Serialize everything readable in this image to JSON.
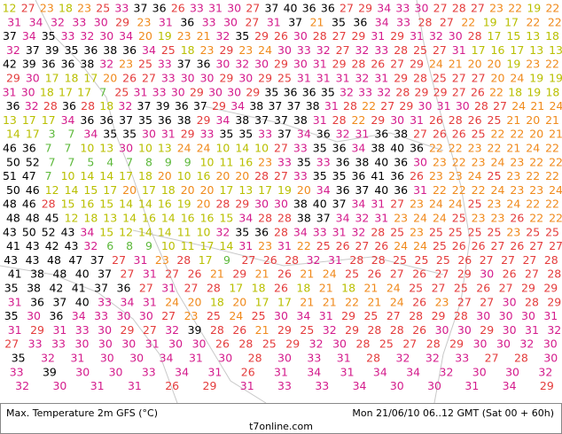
{
  "footer": {
    "title": "Max. Temperature 2m GFS (°C)",
    "time": "Mon 21/06/10 06..12 GMT (Sat 00 + 60h)",
    "source": "t7online.com"
  },
  "rows": [
    [
      12,
      27,
      23,
      18,
      23,
      25,
      33,
      37,
      36,
      26,
      33,
      31,
      30,
      27,
      37,
      40,
      36,
      36,
      27,
      29,
      34,
      33,
      30,
      27,
      28,
      27,
      23,
      22,
      19,
      22
    ],
    [
      31,
      34,
      32,
      33,
      30,
      29,
      23,
      31,
      36,
      33,
      30,
      27,
      31,
      37,
      21,
      35,
      36,
      34,
      33,
      28,
      27,
      22,
      19,
      17,
      22,
      22
    ],
    [
      37,
      34,
      35,
      33,
      32,
      30,
      34,
      20,
      19,
      23,
      21,
      32,
      35,
      29,
      26,
      30,
      28,
      27,
      29,
      31,
      29,
      31,
      32,
      30,
      28,
      17,
      15,
      13,
      18
    ],
    [
      32,
      37,
      39,
      35,
      36,
      38,
      36,
      34,
      25,
      18,
      23,
      29,
      23,
      24,
      30,
      33,
      32,
      27,
      32,
      33,
      28,
      25,
      27,
      31,
      17,
      16,
      17,
      13,
      13
    ],
    [
      42,
      39,
      36,
      36,
      38,
      32,
      23,
      25,
      33,
      37,
      36,
      30,
      32,
      30,
      29,
      30,
      31,
      29,
      28,
      26,
      27,
      29,
      24,
      21,
      20,
      20,
      19,
      23,
      22
    ],
    [
      29,
      30,
      17,
      18,
      17,
      20,
      26,
      27,
      33,
      30,
      30,
      29,
      30,
      29,
      25,
      31,
      31,
      31,
      32,
      31,
      29,
      28,
      25,
      27,
      27,
      20,
      24,
      19,
      19
    ],
    [
      31,
      30,
      18,
      17,
      17,
      7,
      25,
      31,
      33,
      30,
      29,
      30,
      30,
      29,
      35,
      36,
      36,
      35,
      32,
      33,
      32,
      28,
      29,
      29,
      27,
      26,
      22,
      18,
      19,
      18
    ],
    [
      36,
      32,
      28,
      36,
      28,
      18,
      32,
      37,
      39,
      36,
      37,
      29,
      34,
      38,
      37,
      37,
      38,
      31,
      28,
      22,
      27,
      29,
      30,
      31,
      30,
      28,
      27,
      24,
      21,
      24
    ],
    [
      13,
      17,
      17,
      34,
      36,
      36,
      37,
      35,
      36,
      38,
      29,
      34,
      38,
      37,
      37,
      38,
      31,
      28,
      22,
      29,
      30,
      31,
      26,
      28,
      26,
      25,
      21,
      20,
      21
    ],
    [
      14,
      17,
      3,
      7,
      34,
      35,
      35,
      30,
      31,
      29,
      33,
      35,
      35,
      33,
      37,
      34,
      36,
      32,
      31,
      36,
      38,
      27,
      26,
      26,
      25,
      22,
      22,
      20,
      21
    ],
    [
      46,
      36,
      7,
      7,
      10,
      13,
      30,
      10,
      13,
      24,
      24,
      10,
      14,
      10,
      27,
      33,
      35,
      36,
      34,
      38,
      40,
      36,
      22,
      22,
      23,
      22,
      21,
      24,
      22
    ],
    [
      50,
      52,
      7,
      7,
      5,
      4,
      7,
      8,
      9,
      9,
      10,
      11,
      16,
      23,
      33,
      35,
      33,
      36,
      38,
      40,
      36,
      30,
      23,
      22,
      23,
      24,
      23,
      22,
      22
    ],
    [
      51,
      47,
      7,
      10,
      14,
      14,
      17,
      18,
      20,
      10,
      16,
      20,
      20,
      28,
      27,
      33,
      35,
      35,
      36,
      41,
      36,
      26,
      23,
      23,
      24,
      25,
      23,
      22,
      22
    ],
    [
      50,
      46,
      12,
      14,
      15,
      17,
      20,
      17,
      18,
      20,
      20,
      17,
      13,
      17,
      19,
      20,
      34,
      36,
      37,
      40,
      36,
      31,
      22,
      22,
      22,
      24,
      23,
      23,
      24
    ],
    [
      48,
      46,
      28,
      15,
      16,
      15,
      14,
      14,
      16,
      19,
      20,
      28,
      29,
      30,
      30,
      38,
      40,
      37,
      34,
      31,
      27,
      23,
      24,
      24,
      25,
      23,
      24,
      22,
      22
    ],
    [
      48,
      48,
      45,
      12,
      18,
      13,
      14,
      16,
      14,
      16,
      16,
      15,
      34,
      28,
      28,
      38,
      37,
      34,
      32,
      31,
      23,
      24,
      24,
      25,
      23,
      23,
      26,
      22,
      22
    ],
    [
      43,
      50,
      52,
      43,
      34,
      15,
      12,
      14,
      14,
      11,
      10,
      32,
      35,
      36,
      28,
      34,
      33,
      31,
      32,
      28,
      25,
      23,
      25,
      25,
      25,
      25,
      23,
      25,
      25
    ],
    [
      41,
      43,
      42,
      43,
      32,
      6,
      8,
      9,
      10,
      11,
      17,
      14,
      31,
      23,
      31,
      22,
      25,
      26,
      27,
      26,
      24,
      24,
      25,
      26,
      26,
      27,
      26,
      27,
      27
    ],
    [
      43,
      43,
      48,
      47,
      37,
      27,
      31,
      23,
      28,
      17,
      9,
      27,
      26,
      28,
      32,
      31,
      28,
      28,
      25,
      25,
      25,
      26,
      27,
      27,
      27,
      28
    ],
    [
      41,
      38,
      48,
      40,
      37,
      27,
      31,
      27,
      26,
      21,
      29,
      21,
      26,
      21,
      24,
      25,
      26,
      27,
      26,
      27,
      29,
      30,
      26,
      27,
      28
    ],
    [
      35,
      38,
      42,
      41,
      37,
      36,
      27,
      31,
      27,
      28,
      17,
      18,
      26,
      18,
      21,
      18,
      21,
      24,
      25,
      27,
      25,
      26,
      27,
      29,
      29
    ],
    [
      31,
      36,
      37,
      40,
      33,
      34,
      31,
      24,
      20,
      18,
      20,
      17,
      17,
      21,
      21,
      22,
      21,
      24,
      26,
      23,
      27,
      27,
      30,
      28,
      29
    ],
    [
      35,
      30,
      36,
      34,
      33,
      30,
      30,
      27,
      23,
      25,
      24,
      25,
      30,
      34,
      31,
      29,
      25,
      27,
      28,
      29,
      28,
      30,
      30,
      30,
      31
    ],
    [
      31,
      29,
      31,
      33,
      30,
      29,
      27,
      32,
      39,
      28,
      26,
      21,
      29,
      25,
      32,
      29,
      28,
      28,
      26,
      30,
      30,
      29,
      30,
      31,
      32
    ],
    [
      27,
      33,
      33,
      30,
      30,
      30,
      31,
      30,
      30,
      26,
      28,
      25,
      29,
      32,
      30,
      28,
      25,
      27,
      28,
      29,
      30,
      30,
      32,
      30
    ],
    [
      35,
      32,
      31,
      30,
      30,
      34,
      31,
      30,
      28,
      30,
      33,
      31,
      28,
      32,
      32,
      33,
      27,
      28,
      30
    ],
    [
      33,
      39,
      30,
      30,
      33,
      34,
      31,
      26,
      31,
      34,
      31,
      34,
      34,
      32,
      30,
      30,
      32
    ],
    [
      32,
      30,
      31,
      31,
      26,
      29,
      31,
      33,
      33,
      34,
      30,
      30,
      31,
      34,
      29
    ]
  ]
}
